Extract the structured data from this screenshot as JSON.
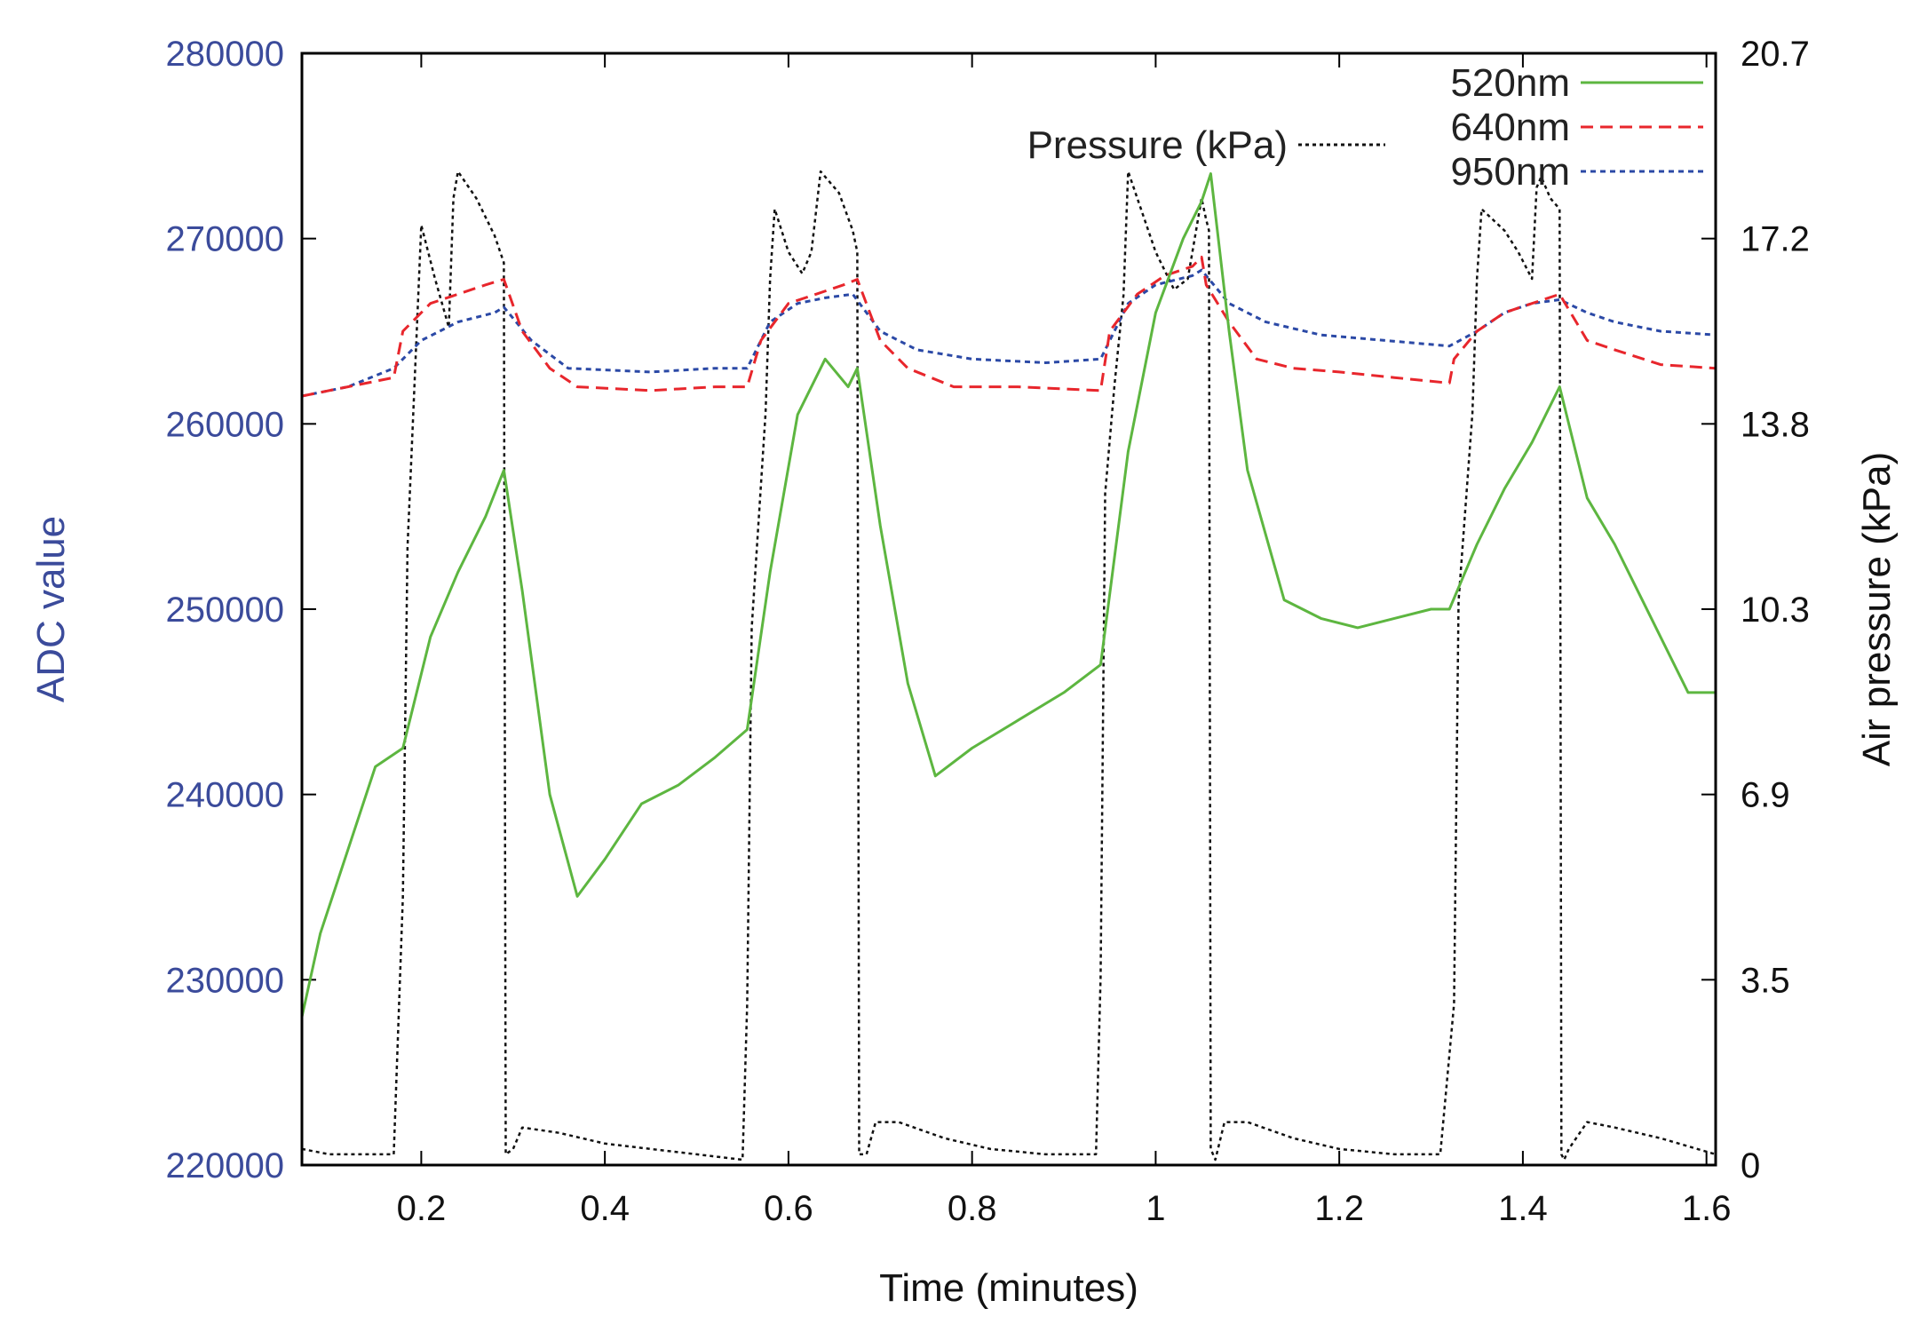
{
  "chart_data": {
    "type": "line",
    "xlabel": "Time (minutes)",
    "ylabel_left": "ADC value",
    "ylabel_right": "Air pressure (kPa)",
    "xlim": [
      0.07,
      1.61
    ],
    "ylim_left": [
      220000,
      280000
    ],
    "ylim_right": [
      0,
      20.7
    ],
    "x_ticks": [
      {
        "value": 0.2,
        "label": "0.2"
      },
      {
        "value": 0.4,
        "label": "0.4"
      },
      {
        "value": 0.6,
        "label": "0.6"
      },
      {
        "value": 0.8,
        "label": "0.8"
      },
      {
        "value": 1.0,
        "label": "1"
      },
      {
        "value": 1.2,
        "label": "1.2"
      },
      {
        "value": 1.4,
        "label": "1.4"
      },
      {
        "value": 1.6,
        "label": "1.6"
      }
    ],
    "y_left_ticks": [
      {
        "value": 220000,
        "label": "220000"
      },
      {
        "value": 230000,
        "label": "230000"
      },
      {
        "value": 240000,
        "label": "240000"
      },
      {
        "value": 250000,
        "label": "250000"
      },
      {
        "value": 260000,
        "label": "260000"
      },
      {
        "value": 270000,
        "label": "270000"
      },
      {
        "value": 280000,
        "label": "280000"
      }
    ],
    "y_right_ticks": [
      {
        "value": 0,
        "label": "0"
      },
      {
        "value": 3.45,
        "label": "3.5"
      },
      {
        "value": 6.9,
        "label": "6.9"
      },
      {
        "value": 10.35,
        "label": "10.3"
      },
      {
        "value": 13.8,
        "label": "13.8"
      },
      {
        "value": 17.25,
        "label": "17.2"
      },
      {
        "value": 20.7,
        "label": "20.7"
      }
    ],
    "colors": {
      "left_axis_text": "#3b4b9b",
      "right_axis_text": "#111111",
      "s520": "#5db640",
      "s640": "#e8262c",
      "s950": "#2b49a6",
      "pressure": "#111111"
    },
    "series": [
      {
        "name": "520nm",
        "axis": "left",
        "style": "solid",
        "color": "#5db640",
        "x": [
          0.07,
          0.09,
          0.12,
          0.15,
          0.18,
          0.21,
          0.24,
          0.27,
          0.29,
          0.31,
          0.34,
          0.37,
          0.4,
          0.44,
          0.48,
          0.52,
          0.555,
          0.58,
          0.61,
          0.64,
          0.665,
          0.675,
          0.7,
          0.73,
          0.76,
          0.8,
          0.85,
          0.9,
          0.94,
          0.97,
          1.0,
          1.03,
          1.05,
          1.06,
          1.08,
          1.1,
          1.14,
          1.18,
          1.22,
          1.26,
          1.3,
          1.32,
          1.35,
          1.38,
          1.41,
          1.44,
          1.47,
          1.5,
          1.53,
          1.56,
          1.58,
          1.61
        ],
        "y": [
          228000,
          232500,
          237000,
          241500,
          242500,
          248500,
          252000,
          255000,
          257500,
          251000,
          240000,
          234500,
          236500,
          239500,
          240500,
          242000,
          243500,
          252000,
          260500,
          263500,
          262000,
          263000,
          254500,
          246000,
          241000,
          242500,
          244000,
          245500,
          247000,
          258500,
          266000,
          270000,
          272000,
          273500,
          265000,
          257500,
          250500,
          249500,
          249000,
          249500,
          250000,
          250000,
          253500,
          256500,
          259000,
          262000,
          256000,
          253500,
          250500,
          247500,
          245500,
          245500
        ]
      },
      {
        "name": "640nm",
        "axis": "left",
        "style": "dashed",
        "color": "#e8262c",
        "x": [
          0.07,
          0.12,
          0.17,
          0.18,
          0.21,
          0.24,
          0.27,
          0.29,
          0.31,
          0.34,
          0.37,
          0.45,
          0.52,
          0.555,
          0.57,
          0.6,
          0.63,
          0.66,
          0.675,
          0.7,
          0.73,
          0.78,
          0.85,
          0.94,
          0.95,
          0.98,
          1.01,
          1.04,
          1.05,
          1.055,
          1.08,
          1.11,
          1.15,
          1.2,
          1.26,
          1.32,
          1.325,
          1.35,
          1.38,
          1.41,
          1.44,
          1.47,
          1.5,
          1.55,
          1.61
        ],
        "y": [
          261500,
          262000,
          262500,
          265000,
          266500,
          267000,
          267500,
          267800,
          265000,
          263000,
          262000,
          261800,
          262000,
          262000,
          264500,
          266500,
          267000,
          267500,
          267800,
          264500,
          263000,
          262000,
          262000,
          261800,
          265000,
          267000,
          268000,
          268500,
          269000,
          267500,
          265500,
          263500,
          263000,
          262800,
          262500,
          262200,
          263500,
          265000,
          266000,
          266500,
          267000,
          264500,
          264000,
          263200,
          263000
        ]
      },
      {
        "name": "950nm",
        "axis": "left",
        "style": "dotted",
        "color": "#2b49a6",
        "x": [
          0.07,
          0.12,
          0.17,
          0.2,
          0.24,
          0.28,
          0.29,
          0.32,
          0.36,
          0.45,
          0.52,
          0.555,
          0.58,
          0.61,
          0.64,
          0.67,
          0.7,
          0.74,
          0.8,
          0.88,
          0.94,
          0.97,
          1.0,
          1.04,
          1.05,
          1.08,
          1.12,
          1.18,
          1.25,
          1.32,
          1.35,
          1.38,
          1.41,
          1.44,
          1.47,
          1.5,
          1.55,
          1.61
        ],
        "y": [
          261500,
          262000,
          263000,
          264500,
          265500,
          266000,
          266300,
          264500,
          263000,
          262800,
          263000,
          263000,
          265500,
          266500,
          266800,
          267000,
          265000,
          264000,
          263500,
          263300,
          263500,
          266500,
          267500,
          268000,
          268300,
          266500,
          265500,
          264800,
          264500,
          264200,
          265000,
          266000,
          266500,
          266700,
          266000,
          265500,
          265000,
          264800
        ]
      },
      {
        "name": "Pressure (kPa)",
        "axis": "right",
        "style": "dotted",
        "color": "#111111",
        "x": [
          0.07,
          0.1,
          0.14,
          0.17,
          0.18,
          0.185,
          0.19,
          0.2,
          0.215,
          0.23,
          0.235,
          0.24,
          0.26,
          0.28,
          0.29,
          0.292,
          0.3,
          0.31,
          0.35,
          0.4,
          0.45,
          0.5,
          0.55,
          0.555,
          0.56,
          0.575,
          0.58,
          0.585,
          0.6,
          0.615,
          0.625,
          0.635,
          0.655,
          0.67,
          0.675,
          0.677,
          0.685,
          0.695,
          0.72,
          0.77,
          0.82,
          0.88,
          0.935,
          0.94,
          0.945,
          0.955,
          0.965,
          0.97,
          1.0,
          1.02,
          1.035,
          1.05,
          1.055,
          1.058,
          1.06,
          1.065,
          1.075,
          1.1,
          1.15,
          1.2,
          1.26,
          1.31,
          1.325,
          1.33,
          1.345,
          1.35,
          1.355,
          1.38,
          1.395,
          1.41,
          1.415,
          1.42,
          1.43,
          1.44,
          1.442,
          1.445,
          1.45,
          1.47,
          1.5,
          1.55,
          1.61
        ],
        "y": [
          0.3,
          0.2,
          0.2,
          0.2,
          5.0,
          11.5,
          13.5,
          17.5,
          16.5,
          15.6,
          18.0,
          18.5,
          18.0,
          17.3,
          16.8,
          0.2,
          0.3,
          0.7,
          0.6,
          0.4,
          0.3,
          0.2,
          0.1,
          3.0,
          10.0,
          14.0,
          16.5,
          17.8,
          17.0,
          16.6,
          17.0,
          18.5,
          18.1,
          17.4,
          17.0,
          0.2,
          0.2,
          0.8,
          0.8,
          0.5,
          0.3,
          0.2,
          0.2,
          3.5,
          12.5,
          14.5,
          16.2,
          18.5,
          17.0,
          16.3,
          16.5,
          18.0,
          17.6,
          17.4,
          0.3,
          0.1,
          0.8,
          0.8,
          0.5,
          0.3,
          0.2,
          0.2,
          3.0,
          10.5,
          14.0,
          16.5,
          17.8,
          17.4,
          17.0,
          16.5,
          18.2,
          18.4,
          18.0,
          17.8,
          0.2,
          0.1,
          0.3,
          0.8,
          0.7,
          0.5,
          0.2
        ]
      }
    ],
    "legend": {
      "location": "top-right",
      "entries": [
        "520nm",
        "640nm",
        "950nm",
        "Pressure (kPa)"
      ]
    }
  }
}
